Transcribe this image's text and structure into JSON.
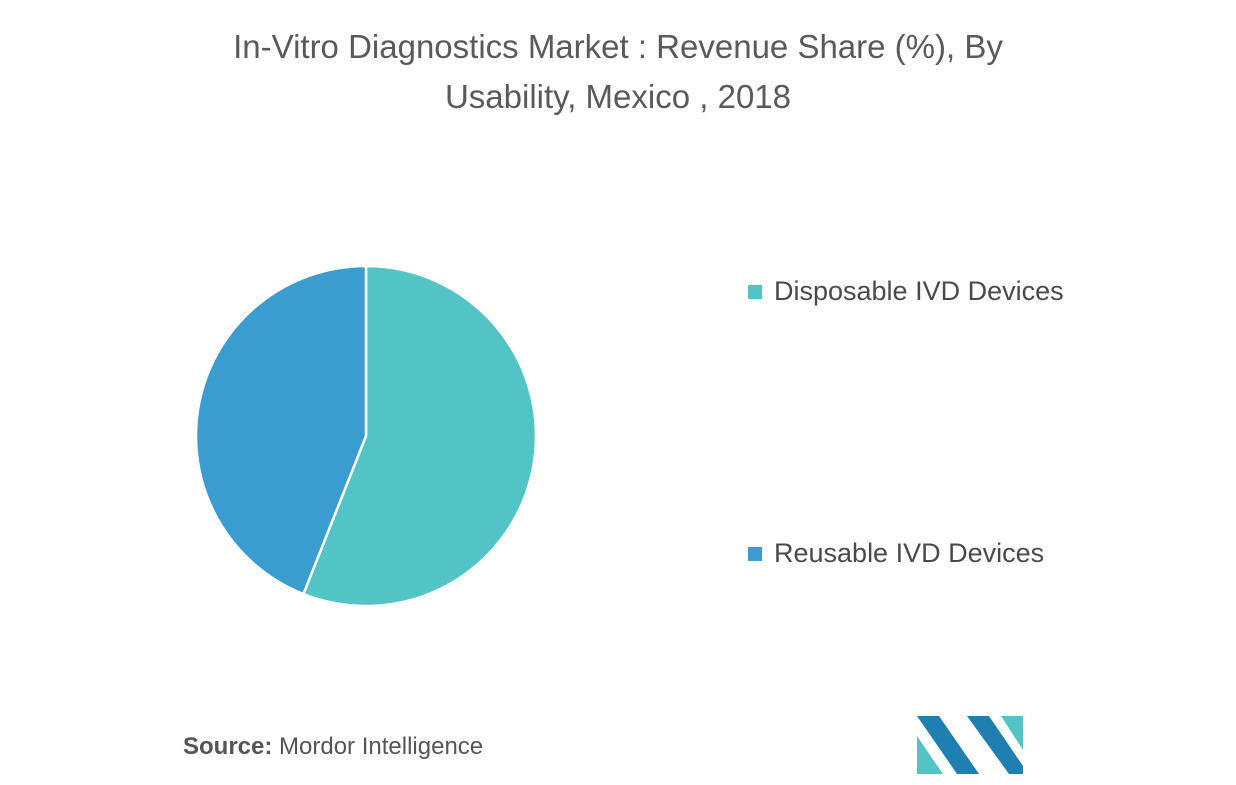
{
  "chart_data": {
    "type": "pie",
    "title": "In-Vitro Diagnostics Market : Revenue Share (%), By Usability, Mexico , 2018",
    "categories": [
      "Disposable IVD Devices",
      "Reusable IVD Devices"
    ],
    "values": [
      56,
      44
    ],
    "colors": [
      "#52c4c6",
      "#3b9ccf"
    ],
    "start_angle_deg": 0,
    "direction": "clockwise",
    "legend_position": "right",
    "data_labels": false
  },
  "title_lines": [
    "In-Vitro Diagnostics Market : Revenue Share (%), By",
    "Usability, Mexico , 2018"
  ],
  "source": {
    "label": "Source:",
    "text": " Mordor Intelligence"
  },
  "logo": {
    "icon": "mordor-intelligence-logo",
    "colors": [
      "#1f7fb0",
      "#52c4c6",
      "#3b9ccf"
    ]
  }
}
